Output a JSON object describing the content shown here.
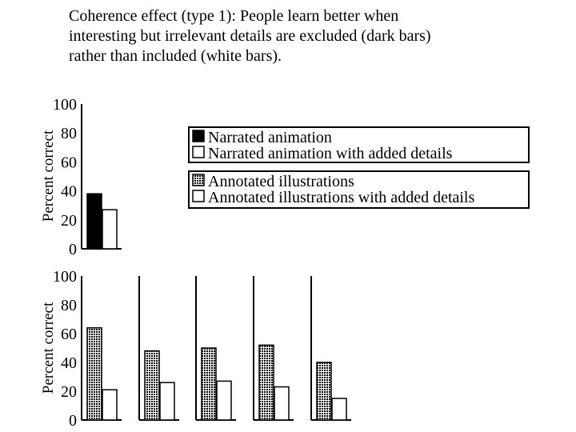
{
  "title_lines": [
    "Coherence effect (type 1): People learn better when",
    "interesting but irrelevant details are excluded (dark bars)",
    "rather than included (white bars)."
  ],
  "chart_data": [
    {
      "type": "bar",
      "panel": "top",
      "ylabel": "Percent correct",
      "ylim": [
        0,
        100
      ],
      "yticks": [
        "100",
        "80",
        "60",
        "40",
        "20",
        "0"
      ],
      "groups": 1,
      "series": [
        {
          "name": "Narrated animation",
          "values": [
            38
          ]
        },
        {
          "name": "Narrated animation with added details",
          "values": [
            27
          ]
        }
      ],
      "legend_placement": "right"
    },
    {
      "type": "bar",
      "panel": "bottom",
      "ylabel": "Percent correct",
      "ylim": [
        0,
        100
      ],
      "yticks": [
        "100",
        "80",
        "60",
        "40",
        "20",
        "0"
      ],
      "groups": 5,
      "series": [
        {
          "name": "Annotated illustrations",
          "values": [
            64,
            48,
            50,
            52,
            40
          ]
        },
        {
          "name": "Annotated illustrations with added details",
          "values": [
            21,
            26,
            27,
            23,
            15
          ]
        }
      ],
      "legend_placement": "right"
    }
  ],
  "colors": {
    "dark_bar": "#000000",
    "dark_pattern_bar": "#3a3a3a",
    "white_bar": "#ffffff",
    "axis": "#000000"
  }
}
